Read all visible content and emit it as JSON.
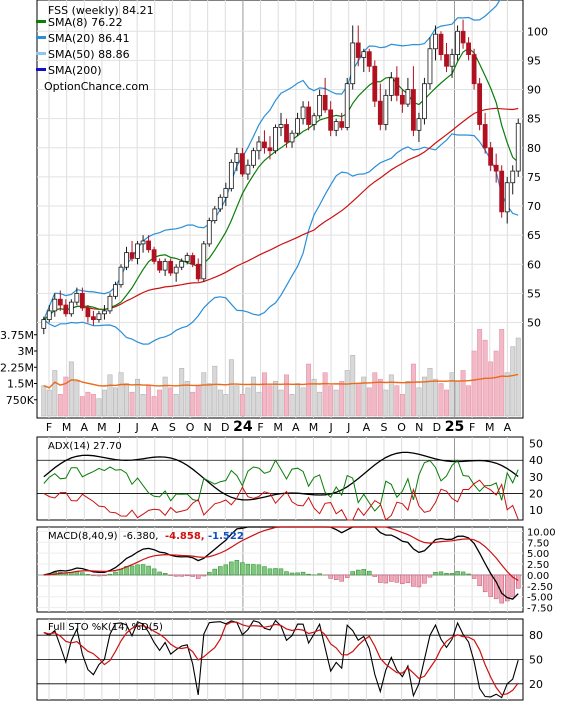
{
  "chart_data": {
    "type": "candlestick",
    "ticker_label": "FSS (weekly) 84.21",
    "watermark": "OptionChance.com",
    "x_month_labels": [
      "F",
      "M",
      "A",
      "M",
      "J",
      "J",
      "A",
      "S",
      "O",
      "N",
      "D",
      "24",
      "F",
      "M",
      "A",
      "M",
      "J",
      "J",
      "A",
      "S",
      "O",
      "N",
      "D",
      "25",
      "F",
      "M",
      "A"
    ],
    "price_axis": {
      "range": [
        47,
        104
      ],
      "ticks": [
        50,
        55,
        60,
        65,
        70,
        75,
        80,
        85,
        90,
        95,
        100
      ]
    },
    "legend": [
      {
        "label": "SMA(8) 76.22",
        "color": "#0a7d0a"
      },
      {
        "label": "SMA(20) 86.41",
        "color": "#2a8fd6"
      },
      {
        "label": "SMA(50) 88.86",
        "color": "#8cc8ee"
      },
      {
        "label": "SMA(200)",
        "color": "#1010c8"
      }
    ],
    "candles": [
      [
        49,
        51,
        48,
        50.5
      ],
      [
        50.5,
        53,
        50,
        52
      ],
      [
        52,
        55,
        51,
        54
      ],
      [
        54,
        55.5,
        52,
        53
      ],
      [
        53,
        54,
        51,
        51.5
      ],
      [
        51.5,
        54,
        51,
        53.5
      ],
      [
        53.5,
        56,
        53,
        55
      ],
      [
        55,
        56,
        52,
        52.5
      ],
      [
        52.5,
        53,
        50,
        51
      ],
      [
        51,
        52,
        49.5,
        50.5
      ],
      [
        50.5,
        52,
        50,
        51.5
      ],
      [
        51.5,
        53,
        50.5,
        52
      ],
      [
        52,
        55,
        51.5,
        54.5
      ],
      [
        54.5,
        57,
        54,
        56.5
      ],
      [
        56.5,
        60,
        56,
        59.5
      ],
      [
        59.5,
        63,
        59,
        62
      ],
      [
        62,
        64,
        60.5,
        61
      ],
      [
        61,
        64,
        60,
        63.5
      ],
      [
        63.5,
        65,
        62,
        64
      ],
      [
        64,
        65,
        62,
        62.5
      ],
      [
        62.5,
        63,
        60,
        60.5
      ],
      [
        60.5,
        61,
        58.5,
        59
      ],
      [
        59,
        61,
        58,
        60.5
      ],
      [
        60.5,
        61,
        58,
        58.5
      ],
      [
        58.5,
        60,
        57,
        59.5
      ],
      [
        59.5,
        61,
        59,
        60.5
      ],
      [
        60.5,
        62,
        60,
        61.5
      ],
      [
        61.5,
        62,
        59.5,
        60
      ],
      [
        60,
        61,
        57,
        57.5
      ],
      [
        57.5,
        64,
        57,
        63.5
      ],
      [
        63.5,
        68,
        63,
        67.5
      ],
      [
        67.5,
        70,
        67,
        69.5
      ],
      [
        69.5,
        72,
        69,
        71.5
      ],
      [
        71.5,
        74,
        70,
        73
      ],
      [
        73,
        78,
        72.5,
        77.5
      ],
      [
        77.5,
        80,
        76,
        79
      ],
      [
        79,
        80,
        75,
        75.5
      ],
      [
        75.5,
        78,
        74.5,
        77
      ],
      [
        77,
        80,
        76.5,
        79.5
      ],
      [
        79.5,
        82,
        78,
        81
      ],
      [
        81,
        83,
        79,
        80
      ],
      [
        80,
        82,
        78,
        79.5
      ],
      [
        79.5,
        84,
        79,
        83.5
      ],
      [
        83.5,
        86,
        82,
        84
      ],
      [
        84,
        85,
        80,
        81
      ],
      [
        81,
        83,
        80,
        82.5
      ],
      [
        82.5,
        86,
        82,
        85
      ],
      [
        85,
        88,
        84,
        87
      ],
      [
        87,
        88,
        83,
        84
      ],
      [
        84,
        86,
        83,
        85.5
      ],
      [
        85.5,
        90,
        85,
        89
      ],
      [
        89,
        92,
        86,
        86.5
      ],
      [
        86.5,
        88,
        82,
        83
      ],
      [
        83,
        85,
        82,
        84.5
      ],
      [
        84.5,
        86,
        83,
        83.5
      ],
      [
        83.5,
        92,
        83,
        91
      ],
      [
        91,
        101,
        90,
        98
      ],
      [
        98,
        101,
        94,
        95.5
      ],
      [
        95.5,
        97,
        93,
        96.5
      ],
      [
        96.5,
        97,
        93,
        94
      ],
      [
        94,
        95,
        87,
        88
      ],
      [
        88,
        91,
        83,
        84
      ],
      [
        84,
        90,
        83,
        89
      ],
      [
        89,
        93,
        88,
        92
      ],
      [
        92,
        94,
        88,
        89
      ],
      [
        89,
        90,
        86,
        87.5
      ],
      [
        87.5,
        92,
        87,
        90
      ],
      [
        90,
        94,
        82,
        83
      ],
      [
        83,
        86,
        81,
        85
      ],
      [
        85,
        92,
        84,
        91
      ],
      [
        91,
        99,
        90,
        97
      ],
      [
        97,
        101,
        95,
        99.5
      ],
      [
        99.5,
        100,
        95,
        96
      ],
      [
        96,
        98,
        93,
        94
      ],
      [
        94,
        97,
        92,
        96
      ],
      [
        96,
        101,
        95,
        100
      ],
      [
        100,
        102,
        97,
        98
      ],
      [
        98,
        99,
        95,
        96
      ],
      [
        96,
        97,
        90,
        91
      ],
      [
        91,
        92,
        83,
        84
      ],
      [
        84,
        86,
        79,
        80
      ],
      [
        80,
        81,
        76,
        77
      ],
      [
        77,
        79,
        74,
        76
      ],
      [
        76,
        77,
        68,
        69
      ],
      [
        69,
        75,
        67,
        74
      ],
      [
        74,
        77,
        72,
        76
      ],
      [
        76,
        85,
        75,
        84.2
      ]
    ],
    "volume_axis": {
      "ticks": [
        "750K",
        "1.5M",
        "2.25M",
        "3M",
        "3.75M"
      ]
    },
    "volume": [
      1.4,
      1.2,
      2.1,
      1.0,
      1.8,
      2.5,
      1.6,
      0.9,
      1.1,
      1.0,
      0.8,
      1.2,
      1.9,
      1.3,
      2.0,
      1.5,
      1.1,
      1.7,
      1.0,
      1.4,
      0.9,
      1.2,
      1.8,
      1.3,
      1.0,
      2.2,
      1.6,
      1.1,
      1.4,
      2.0,
      1.5,
      2.3,
      1.2,
      1.0,
      2.6,
      1.4,
      1.0,
      1.3,
      1.8,
      1.1,
      2.0,
      1.4,
      1.6,
      1.2,
      1.9,
      1.0,
      1.5,
      1.3,
      2.4,
      1.7,
      1.1,
      2.0,
      1.4,
      1.2,
      1.6,
      2.1,
      2.8,
      1.5,
      1.8,
      1.3,
      2.0,
      1.7,
      1.2,
      1.9,
      1.4,
      1.0,
      1.6,
      2.4,
      1.3,
      1.8,
      2.2,
      1.7,
      1.5,
      1.2,
      2.0,
      1.6,
      2.1,
      1.4,
      3.0,
      4.0,
      3.5,
      2.5,
      3.0,
      4.0,
      2.0,
      3.2,
      3.6
    ],
    "adx": {
      "label": "ADX(14) 27.70",
      "ticks": [
        10,
        20,
        30,
        40,
        50
      ],
      "range": [
        4,
        54
      ]
    },
    "macd": {
      "label": "MACD(8,40,9)",
      "value1": "-6.380,",
      "value2": "-4.858,",
      "value3": "-1.522",
      "ticks": [
        "10.00",
        "7.50",
        "5.00",
        "2.50",
        "0.00",
        "-2.50",
        "-5.00",
        "-7.50"
      ],
      "range": [
        -8.5,
        11
      ]
    },
    "stoch": {
      "label": "Full STO %K(14) %D(5)",
      "ticks": [
        20,
        50,
        80
      ],
      "range": [
        0,
        100
      ]
    }
  }
}
